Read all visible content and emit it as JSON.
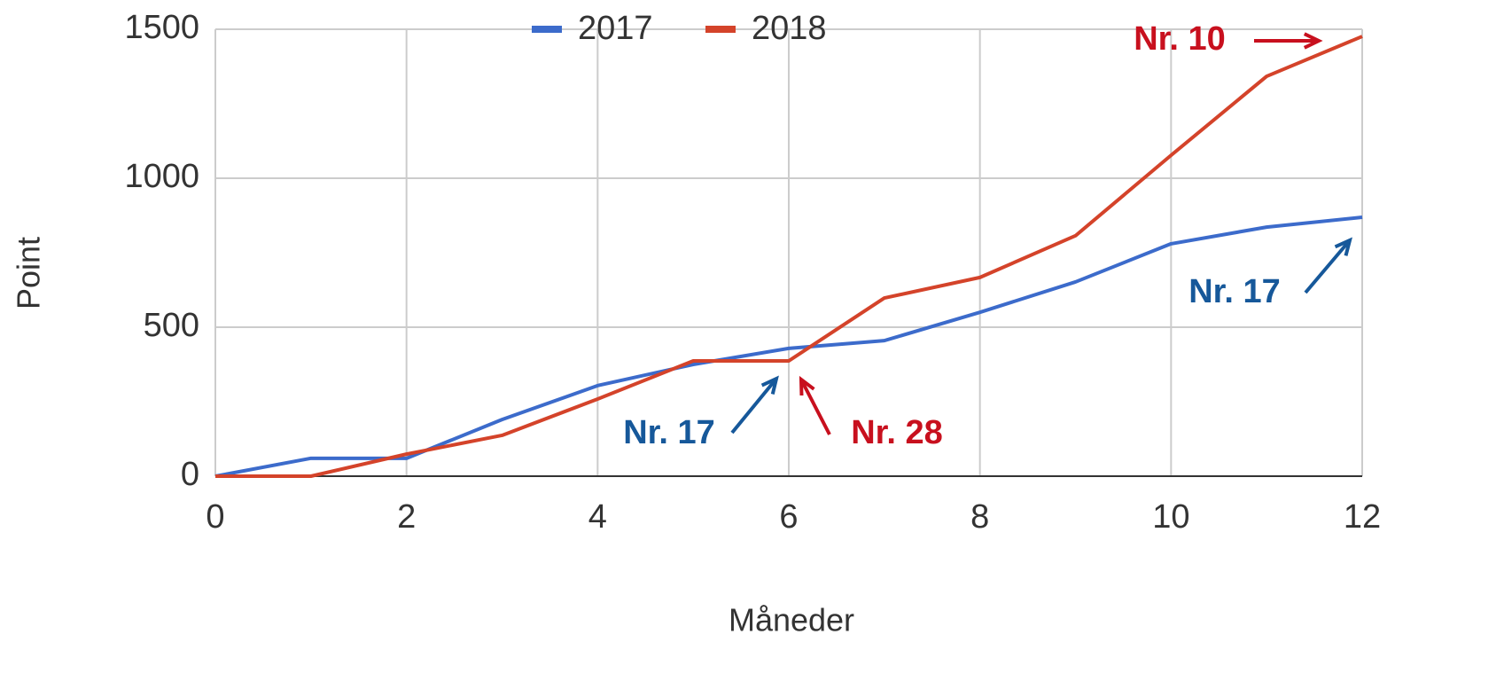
{
  "chart_data": {
    "type": "line",
    "x_label": "Måneder",
    "y_label": "Point",
    "x": [
      0,
      1,
      2,
      3,
      4,
      5,
      6,
      7,
      8,
      9,
      10,
      11,
      12
    ],
    "series": [
      {
        "name": "2017",
        "color": "#3c6bcb",
        "values": [
          0,
          60,
          60,
          190,
          304,
          375,
          429,
          455,
          550,
          652,
          780,
          836,
          869
        ]
      },
      {
        "name": "2018",
        "color": "#d4432a",
        "values": [
          0,
          0,
          74,
          137,
          259,
          387,
          387,
          598,
          667,
          807,
          1077,
          1342,
          1476
        ]
      }
    ],
    "xlim": [
      0,
      12
    ],
    "xticks": [
      0,
      2,
      4,
      6,
      8,
      10,
      12
    ],
    "ylim": [
      0,
      1500
    ],
    "yticks": [
      0,
      500,
      1000,
      1500
    ],
    "grid": true,
    "legend": "top",
    "annotations": [
      {
        "text": "Nr. 10",
        "color": "#c8101e"
      },
      {
        "text": "Nr. 17",
        "color": "#16589a"
      },
      {
        "text": "Nr. 17",
        "color": "#16589a"
      },
      {
        "text": "Nr. 28",
        "color": "#c8101e"
      }
    ]
  }
}
